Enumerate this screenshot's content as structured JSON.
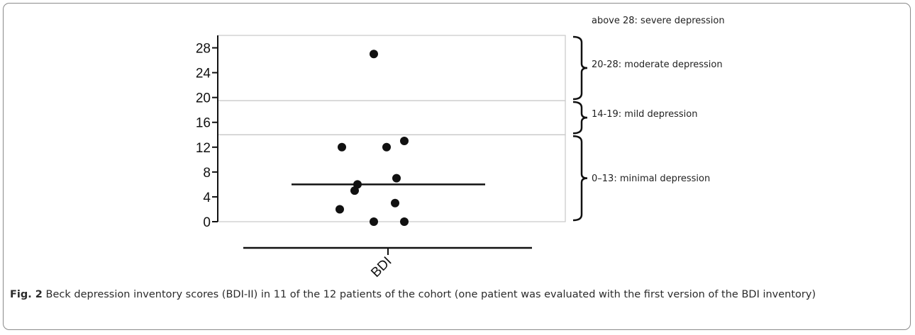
{
  "chart_data": {
    "type": "scatter",
    "xlabel": "",
    "ylabel": "",
    "categories": [
      "BDI"
    ],
    "ylim": [
      0,
      30
    ],
    "yticks": [
      0,
      4,
      8,
      12,
      16,
      20,
      24,
      28
    ],
    "ytick_labels": [
      "0",
      "4",
      "8",
      "12",
      "16",
      "20",
      "24",
      "28"
    ],
    "points": [
      {
        "x": -0.2,
        "y": 27
      },
      {
        "x": 0.23,
        "y": 13
      },
      {
        "x": -0.65,
        "y": 12
      },
      {
        "x": -0.02,
        "y": 12
      },
      {
        "x": 0.12,
        "y": 7
      },
      {
        "x": -0.43,
        "y": 6
      },
      {
        "x": -0.47,
        "y": 5
      },
      {
        "x": 0.1,
        "y": 3
      },
      {
        "x": -0.68,
        "y": 2
      },
      {
        "x": -0.2,
        "y": 0
      },
      {
        "x": 0.23,
        "y": 0
      }
    ],
    "median": 6,
    "bands": [
      {
        "label": "above 28: severe depression",
        "from": null,
        "to": null
      },
      {
        "label": "20-28: moderate depression",
        "from": 19.5,
        "to": 30
      },
      {
        "label": "14-19: mild depression",
        "from": 14,
        "to": 19.5
      },
      {
        "label": "0–13: minimal depression",
        "from": 0,
        "to": 14
      }
    ],
    "grid": false,
    "legend": "none"
  },
  "caption": {
    "lead": "Fig. 2",
    "text": " Beck depression inventory scores (BDI-II) in 11 of the 12 patients of the cohort (one patient was evaluated with the first version of the BDI inventory)"
  }
}
